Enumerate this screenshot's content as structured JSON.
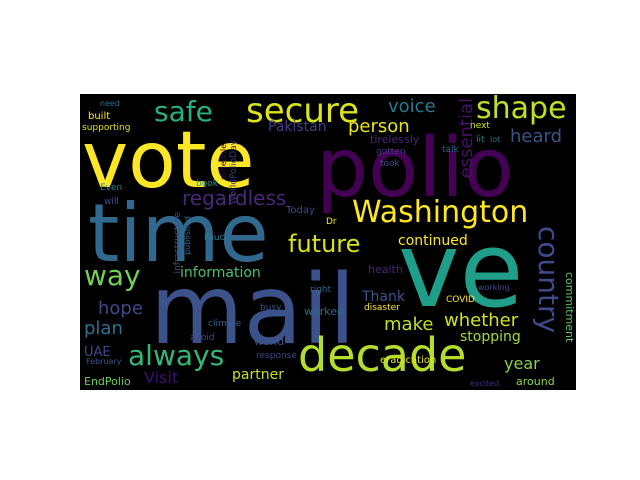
{
  "wordcloud": {
    "words": [
      {
        "text": "vote",
        "color": "#fde725"
      },
      {
        "text": "polio",
        "color": "#440154"
      },
      {
        "text": "time",
        "color": "#31688e"
      },
      {
        "text": "mail",
        "color": "#3b528b"
      },
      {
        "text": "ve",
        "color": "#1f9e89"
      },
      {
        "text": "decade",
        "color": "#b5de2b"
      },
      {
        "text": "Washington",
        "color": "#fde725"
      },
      {
        "text": "secure",
        "color": "#dce319"
      },
      {
        "text": "safe",
        "color": "#29af7f"
      },
      {
        "text": "shape",
        "color": "#c2df23"
      },
      {
        "text": "country",
        "color": "#3e4a89"
      },
      {
        "text": "always",
        "color": "#35b779"
      },
      {
        "text": "future",
        "color": "#d8e219"
      },
      {
        "text": "way",
        "color": "#73d055"
      },
      {
        "text": "voice",
        "color": "#2a788e"
      },
      {
        "text": "person",
        "color": "#e7e419"
      },
      {
        "text": "heard",
        "color": "#3b528b"
      },
      {
        "text": "regardless",
        "color": "#482878"
      },
      {
        "text": "essential",
        "color": "#471063"
      },
      {
        "text": "continued",
        "color": "#fde725"
      },
      {
        "text": "Pakistan",
        "color": "#433e85"
      },
      {
        "text": "hope",
        "color": "#3e4989"
      },
      {
        "text": "plan",
        "color": "#2c728e"
      },
      {
        "text": "information",
        "color": "#4ac16d"
      },
      {
        "text": "make",
        "color": "#c2df23"
      },
      {
        "text": "whether",
        "color": "#d2e21b"
      },
      {
        "text": "Thank",
        "color": "#3a548c"
      },
      {
        "text": "stopping",
        "color": "#a2da37"
      },
      {
        "text": "year",
        "color": "#86d549"
      },
      {
        "text": "commitment",
        "color": "#5ec962"
      },
      {
        "text": "Visit",
        "color": "#3b0f70"
      },
      {
        "text": "partner",
        "color": "#c8e020"
      },
      {
        "text": "UAE",
        "color": "#3e4a89"
      },
      {
        "text": "EndPolio",
        "color": "#6ccd5a"
      },
      {
        "text": "need",
        "color": "#2c728e"
      },
      {
        "text": "built",
        "color": "#fde725"
      },
      {
        "text": "supporting",
        "color": "#dde318"
      },
      {
        "text": "Even",
        "color": "#23898e"
      },
      {
        "text": "will",
        "color": "#3b528b"
      },
      {
        "text": "book",
        "color": "#21918c"
      },
      {
        "text": "schedule",
        "color": "#440154"
      },
      {
        "text": "WorldPolioDay",
        "color": "#46337e"
      },
      {
        "text": "Fauci",
        "color": "#277f8e"
      },
      {
        "text": "Today",
        "color": "#3f4788"
      },
      {
        "text": "infrastructure",
        "color": "#3b528b"
      },
      {
        "text": "published",
        "color": "#31688e"
      },
      {
        "text": "climate",
        "color": "#355f8d"
      },
      {
        "text": "busy",
        "color": "#3a538b"
      },
      {
        "text": "world",
        "color": "#3b528b"
      },
      {
        "text": "worked",
        "color": "#31688e"
      },
      {
        "text": "avoid",
        "color": "#3e4989"
      },
      {
        "text": "February",
        "color": "#39568c"
      },
      {
        "text": "response",
        "color": "#3f4889"
      },
      {
        "text": "right",
        "color": "#31688e"
      },
      {
        "text": "disaster",
        "color": "#fde725"
      },
      {
        "text": "eradication",
        "color": "#e5e419"
      },
      {
        "text": "COVID",
        "color": "#fde725"
      },
      {
        "text": "health",
        "color": "#482475"
      },
      {
        "text": "working",
        "color": "#3e4a89"
      },
      {
        "text": "around",
        "color": "#8bd646"
      },
      {
        "text": "excited",
        "color": "#472c7a"
      },
      {
        "text": "tirelessly",
        "color": "#482878"
      },
      {
        "text": "gotten",
        "color": "#453781"
      },
      {
        "text": "took",
        "color": "#3b528b"
      },
      {
        "text": "Dr",
        "color": "#fde725"
      },
      {
        "text": "talk",
        "color": "#31688e"
      },
      {
        "text": "next",
        "color": "#d0e11c"
      },
      {
        "text": "lot",
        "color": "#2c728e"
      },
      {
        "text": "lit",
        "color": "#26828e"
      }
    ]
  }
}
